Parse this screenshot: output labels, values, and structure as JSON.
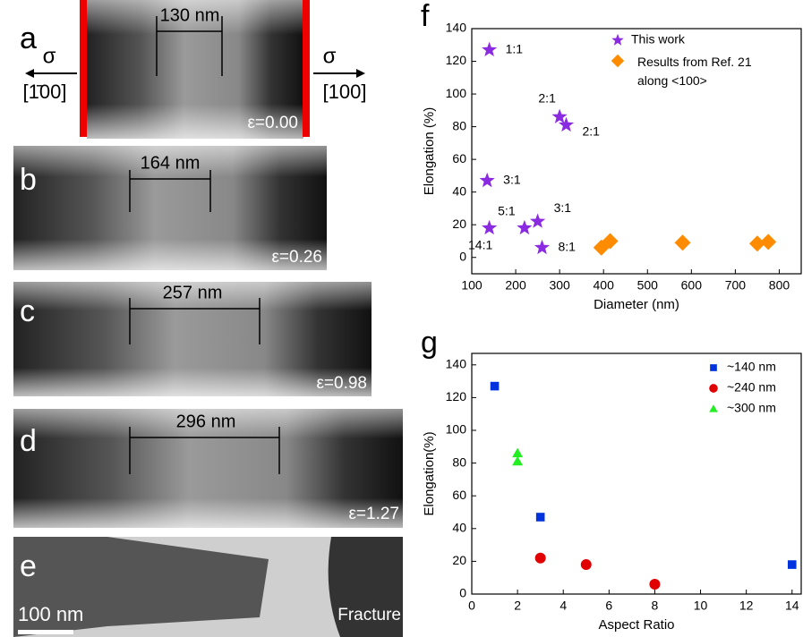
{
  "panels": [
    {
      "label": "a",
      "measure": "130 nm",
      "strain": "ε=0.00",
      "stress_left": "σ",
      "stress_right": "σ",
      "direction_left": "[1̄00]",
      "direction_right": "[100]"
    },
    {
      "label": "b",
      "measure": "164 nm",
      "strain": "ε=0.26"
    },
    {
      "label": "c",
      "measure": "257 nm",
      "strain": "ε=0.98"
    },
    {
      "label": "d",
      "measure": "296 nm",
      "strain": "ε=1.27"
    },
    {
      "label": "e",
      "scale_bar": "100 nm",
      "status": "Fracture"
    }
  ],
  "chart_data": [
    {
      "type": "scatter",
      "panel_label": "f",
      "x_label": "Diameter (nm)",
      "y_label": "Elongation (%)",
      "xlim": [
        100,
        850
      ],
      "xticks": [
        100,
        200,
        300,
        400,
        500,
        600,
        700,
        800
      ],
      "ylim": [
        -10,
        140
      ],
      "yticks": [
        0,
        20,
        40,
        60,
        80,
        100,
        120,
        140
      ],
      "grid": false,
      "series": [
        {
          "name": "This work",
          "color": "#8a2be2",
          "marker": "star",
          "x": [
            140,
            300,
            315,
            135,
            140,
            220,
            250,
            260
          ],
          "values": [
            127,
            86,
            81,
            47,
            18,
            18,
            22,
            6
          ],
          "point_labels": [
            "1:1",
            "2:1",
            "2:1",
            "3:1",
            "14:1",
            "5:1",
            "3:1",
            "8:1"
          ]
        },
        {
          "name": "Results from Ref. 21 along <100>",
          "color": "#ff8c00",
          "marker": "diamond",
          "x": [
            395,
            415,
            580,
            750,
            775
          ],
          "values": [
            6,
            10,
            9,
            8.5,
            9.5
          ]
        }
      ]
    },
    {
      "type": "scatter",
      "panel_label": "g",
      "x_label": "Aspect Ratio",
      "y_label": "Elongation(%)",
      "xlim": [
        0,
        14.4
      ],
      "xticks": [
        0,
        2,
        4,
        6,
        8,
        10,
        12,
        14
      ],
      "ylim": [
        0,
        147
      ],
      "yticks": [
        0,
        20,
        40,
        60,
        80,
        100,
        120,
        140
      ],
      "grid": false,
      "series": [
        {
          "name": "~140 nm",
          "color": "#0033dd",
          "marker": "square",
          "x": [
            1,
            3,
            14
          ],
          "values": [
            127,
            47,
            18
          ]
        },
        {
          "name": "~240 nm",
          "color": "#e00000",
          "marker": "circle",
          "x": [
            3,
            5,
            8
          ],
          "values": [
            22,
            18,
            6
          ]
        },
        {
          "name": "~300 nm",
          "color": "#22ee22",
          "marker": "triangle",
          "x": [
            2,
            2
          ],
          "values": [
            86,
            81
          ]
        }
      ]
    }
  ]
}
